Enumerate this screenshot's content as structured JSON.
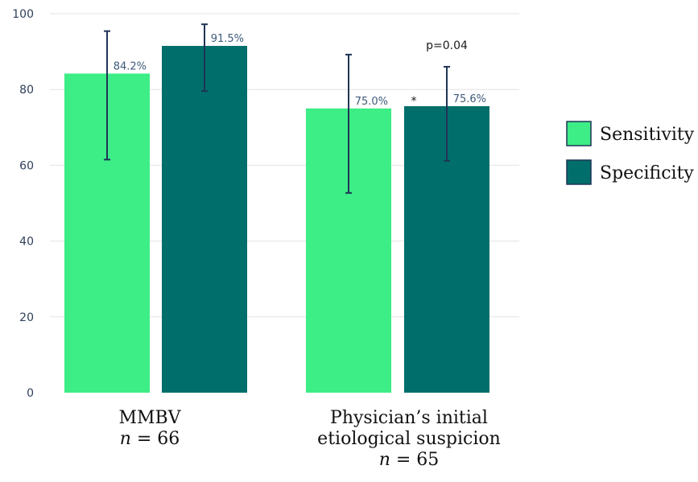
{
  "chart_data": {
    "type": "bar",
    "ylim": [
      0,
      100
    ],
    "yticks": [
      0,
      20,
      40,
      60,
      80,
      100
    ],
    "grid": true,
    "legend_position": "right",
    "groups": [
      {
        "label_lines": [
          "MMBV"
        ],
        "n_prefix": "n",
        "n_suffix": " = 66"
      },
      {
        "label_lines": [
          "Physician’s initial",
          "etiological suspicion"
        ],
        "n_prefix": "n",
        "n_suffix": " = 65"
      }
    ],
    "series": [
      {
        "name": "Sensitivity",
        "color": "#3ded86",
        "values": [
          84.2,
          75.0
        ],
        "labels": [
          "84.2%",
          "75.0%"
        ],
        "ci_low": [
          61.5,
          52.7
        ],
        "ci_high": [
          95.4,
          89.2
        ]
      },
      {
        "name": "Specificity",
        "color": "#006e6a",
        "values": [
          91.5,
          75.6
        ],
        "labels": [
          "91.5%",
          "75.6%"
        ],
        "ci_low": [
          79.6,
          61.2
        ],
        "ci_high": [
          97.2,
          86.0
        ]
      }
    ],
    "annotations": {
      "p_value": "p=0.04",
      "star": "*"
    },
    "errorbar_color": "#1f3556"
  }
}
